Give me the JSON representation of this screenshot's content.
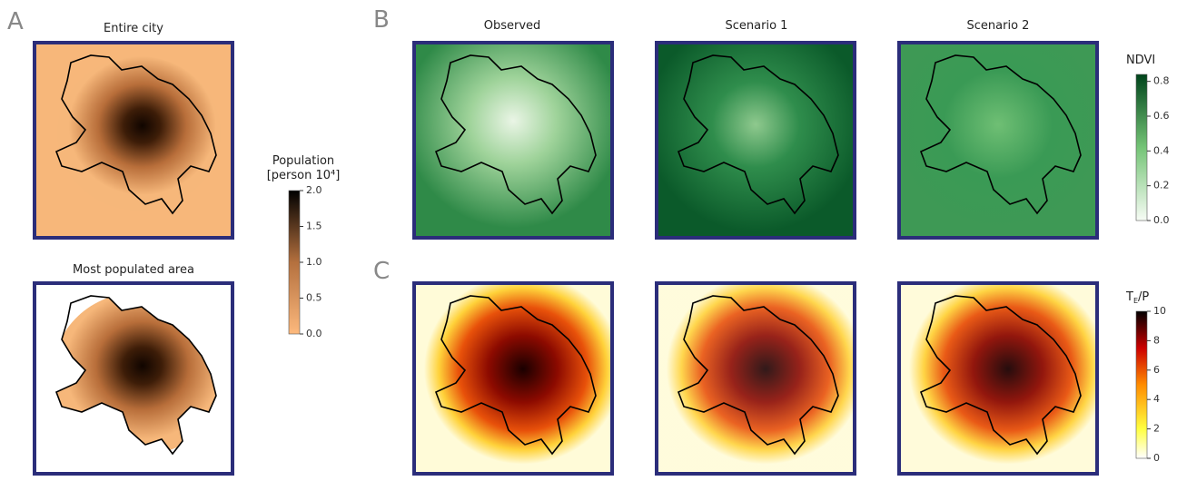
{
  "panel_letters": [
    "A",
    "B",
    "C"
  ],
  "maps": {
    "A": [
      "Entire city",
      "Most populated area"
    ],
    "B": [
      "Observed",
      "Scenario 1",
      "Scenario 2"
    ]
  },
  "colorbars": [
    {
      "label_lines": [
        "Population",
        "[person 10⁴]"
      ],
      "lim": [
        0,
        2
      ],
      "ticks": [
        {
          "value": 0,
          "label": "0.0"
        },
        0.5,
        {
          "value": 1,
          "label": "1.0"
        },
        1.5,
        {
          "value": 2,
          "label": "2.0"
        }
      ]
    },
    {
      "label": "NDVI",
      "lim": [
        0,
        0.84
      ],
      "ticks": [
        {
          "value": 0,
          "label": "0.0"
        },
        0.2,
        0.4,
        0.6,
        0.8
      ]
    },
    {
      "label_parts": [
        "T",
        "E",
        "/P"
      ],
      "lim": [
        0,
        10
      ],
      "ticks": [
        0,
        2,
        4,
        6,
        8,
        10
      ]
    }
  ]
}
